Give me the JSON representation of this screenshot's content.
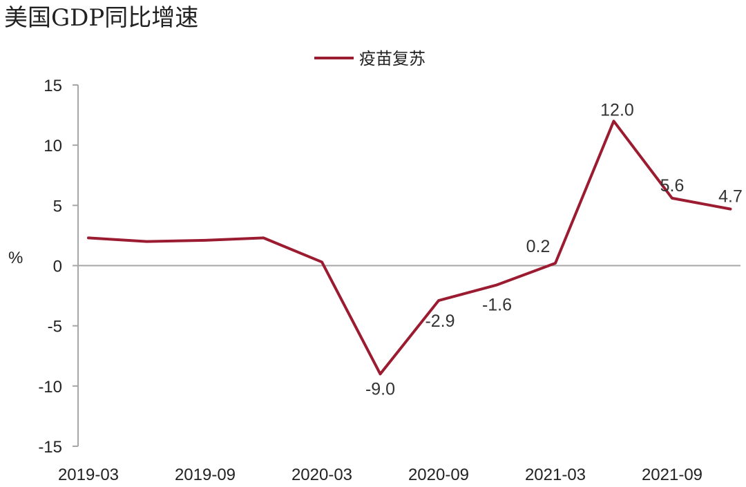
{
  "title": "美国GDP同比增速",
  "colors": {
    "series": "#9b1b30",
    "axis": "#a6a6a6",
    "zero_line": "#a6a6a6",
    "text": "#222222"
  },
  "chart_data": {
    "type": "line",
    "title": "美国GDP同比增速",
    "xlabel": "",
    "ylabel": "%",
    "ylim": [
      -15,
      15
    ],
    "yticks": [
      15,
      10,
      5,
      0,
      -5,
      -10,
      -15
    ],
    "x": [
      "2019-03",
      "2019-06",
      "2019-09",
      "2019-12",
      "2020-03",
      "2020-06",
      "2020-09",
      "2020-12",
      "2021-03",
      "2021-06",
      "2021-09",
      "2021-12"
    ],
    "xtick_labels": [
      "2019-03",
      "2019-09",
      "2020-03",
      "2020-09",
      "2021-03",
      "2021-09"
    ],
    "grid": false,
    "legend_position": "top-center",
    "series": [
      {
        "name": "疫苗复苏",
        "values": [
          2.3,
          2.0,
          2.1,
          2.3,
          0.3,
          -9.0,
          -2.9,
          -1.6,
          0.2,
          12.0,
          5.6,
          4.7
        ]
      }
    ],
    "data_labels": [
      {
        "index": 5,
        "text": "-9.0"
      },
      {
        "index": 6,
        "text": "-2.9"
      },
      {
        "index": 7,
        "text": "-1.6"
      },
      {
        "index": 8,
        "text": "0.2"
      },
      {
        "index": 9,
        "text": "12.0"
      },
      {
        "index": 10,
        "text": "5.6"
      },
      {
        "index": 11,
        "text": "4.7"
      }
    ]
  }
}
